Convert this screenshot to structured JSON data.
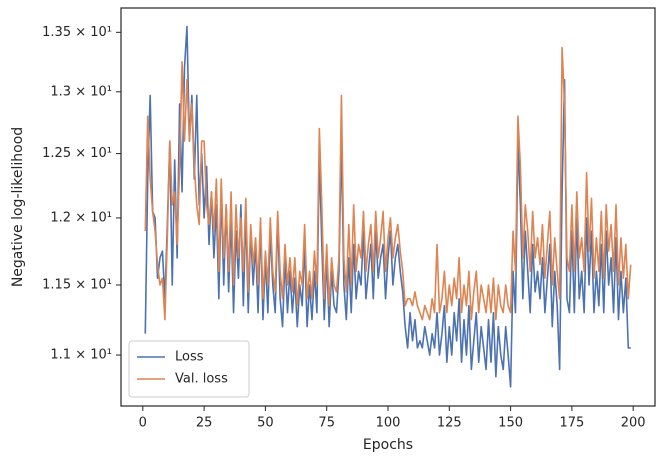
{
  "chart_data": {
    "type": "line",
    "xlabel": "Epochs",
    "ylabel": "Negative log-likelihood",
    "x": [
      1,
      2,
      3,
      4,
      5,
      6,
      7,
      8,
      9,
      10,
      11,
      12,
      13,
      14,
      15,
      16,
      17,
      18,
      19,
      20,
      21,
      22,
      23,
      24,
      25,
      26,
      27,
      28,
      29,
      30,
      31,
      32,
      33,
      34,
      35,
      36,
      37,
      38,
      39,
      40,
      41,
      42,
      43,
      44,
      45,
      46,
      47,
      48,
      49,
      50,
      51,
      52,
      53,
      54,
      55,
      56,
      57,
      58,
      59,
      60,
      61,
      62,
      63,
      64,
      65,
      66,
      67,
      68,
      69,
      70,
      71,
      72,
      73,
      74,
      75,
      76,
      77,
      78,
      79,
      80,
      81,
      82,
      83,
      84,
      85,
      86,
      87,
      88,
      89,
      90,
      91,
      92,
      93,
      94,
      95,
      96,
      97,
      98,
      99,
      100,
      101,
      102,
      103,
      104,
      105,
      106,
      107,
      108,
      109,
      110,
      111,
      112,
      113,
      114,
      115,
      116,
      117,
      118,
      119,
      120,
      121,
      122,
      123,
      124,
      125,
      126,
      127,
      128,
      129,
      130,
      131,
      132,
      133,
      134,
      135,
      136,
      137,
      138,
      139,
      140,
      141,
      142,
      143,
      144,
      145,
      146,
      147,
      148,
      149,
      150,
      151,
      152,
      153,
      154,
      155,
      156,
      157,
      158,
      159,
      160,
      161,
      162,
      163,
      164,
      165,
      166,
      167,
      168,
      169,
      170,
      171,
      172,
      173,
      174,
      175,
      176,
      177,
      178,
      179,
      180,
      181,
      182,
      183,
      184,
      185,
      186,
      187,
      188,
      189,
      190,
      191,
      192,
      193,
      194,
      195,
      196,
      197,
      198,
      199
    ],
    "series": [
      {
        "name": "Loss",
        "color": "#4c72b0",
        "values": [
          11.15,
          12.3,
          12.97,
          12.05,
          12.0,
          11.55,
          11.7,
          11.75,
          11.4,
          11.95,
          12.6,
          11.5,
          12.45,
          11.7,
          12.9,
          12.2,
          13.2,
          13.55,
          12.6,
          12.97,
          12.3,
          12.97,
          12.1,
          12.5,
          12.0,
          12.4,
          11.8,
          12.2,
          11.7,
          12.1,
          11.4,
          12.2,
          11.5,
          12.1,
          11.45,
          12.0,
          11.3,
          11.9,
          11.55,
          12.1,
          11.35,
          12.05,
          11.3,
          11.9,
          11.5,
          11.8,
          11.3,
          11.95,
          11.25,
          11.7,
          11.3,
          11.9,
          11.5,
          11.3,
          12.0,
          11.4,
          11.2,
          11.7,
          11.3,
          11.6,
          11.3,
          11.55,
          11.2,
          11.5,
          11.35,
          11.8,
          11.2,
          11.5,
          11.25,
          11.6,
          11.3,
          12.5,
          11.8,
          11.25,
          11.7,
          11.2,
          11.6,
          11.35,
          11.3,
          11.6,
          12.6,
          11.5,
          11.25,
          11.7,
          11.3,
          11.8,
          11.4,
          11.6,
          11.5,
          11.9,
          11.4,
          11.6,
          11.8,
          11.4,
          11.9,
          11.55,
          11.7,
          11.8,
          11.4,
          11.7,
          11.9,
          11.5,
          11.7,
          11.8,
          11.6,
          11.45,
          11.2,
          11.05,
          11.3,
          11.1,
          11.25,
          11.05,
          11.1,
          11.05,
          11.2,
          11.1,
          11.0,
          11.15,
          11.05,
          11.3,
          11.0,
          11.15,
          11.35,
          10.95,
          11.2,
          11.0,
          11.3,
          11.1,
          11.4,
          10.95,
          11.25,
          11.0,
          11.35,
          10.9,
          11.1,
          11.3,
          10.95,
          11.2,
          11.05,
          10.9,
          11.25,
          10.95,
          11.3,
          10.85,
          11.2,
          11.0,
          10.9,
          11.2,
          11.0,
          10.78,
          11.6,
          11.3,
          12.6,
          12.1,
          11.4,
          11.9,
          11.6,
          11.3,
          11.8,
          11.45,
          11.6,
          11.4,
          11.7,
          11.3,
          11.55,
          11.8,
          11.2,
          11.6,
          11.35,
          10.9,
          12.2,
          13.1,
          11.4,
          11.3,
          11.9,
          11.3,
          12.0,
          11.4,
          11.6,
          11.3,
          12.0,
          11.5,
          11.9,
          11.3,
          11.6,
          11.35,
          11.8,
          11.3,
          11.9,
          11.5,
          11.7,
          11.3,
          11.85,
          11.25,
          11.6,
          11.3,
          11.55,
          11.05,
          11.05
        ]
      },
      {
        "name": "Val. loss",
        "color": "#dd8452",
        "values": [
          11.9,
          12.8,
          12.3,
          12.05,
          11.9,
          11.65,
          11.5,
          11.55,
          11.25,
          11.85,
          12.6,
          12.1,
          12.2,
          11.8,
          12.4,
          13.25,
          12.6,
          13.1,
          12.6,
          12.9,
          12.4,
          12.1,
          11.95,
          12.6,
          12.6,
          12.1,
          11.95,
          12.2,
          11.9,
          12.3,
          11.6,
          12.3,
          11.7,
          12.1,
          11.6,
          12.2,
          11.5,
          12.1,
          11.7,
          12.0,
          11.6,
          12.15,
          11.45,
          11.95,
          11.65,
          11.85,
          11.5,
          12.0,
          11.4,
          11.75,
          11.5,
          12.0,
          11.6,
          11.45,
          12.05,
          11.6,
          11.4,
          11.8,
          11.5,
          11.7,
          11.45,
          11.7,
          11.35,
          11.6,
          11.5,
          11.95,
          11.4,
          11.6,
          11.4,
          11.75,
          11.5,
          12.7,
          12.1,
          11.4,
          11.8,
          11.35,
          11.7,
          11.5,
          11.45,
          11.7,
          12.97,
          11.7,
          11.45,
          11.95,
          11.5,
          12.1,
          11.6,
          11.8,
          11.7,
          12.05,
          11.6,
          11.8,
          11.95,
          11.6,
          12.05,
          11.7,
          11.85,
          12.05,
          11.6,
          11.85,
          12.0,
          11.7,
          11.85,
          11.95,
          11.75,
          11.6,
          11.35,
          11.4,
          11.4,
          11.35,
          11.45,
          11.35,
          11.3,
          11.25,
          11.35,
          11.3,
          11.25,
          11.4,
          11.3,
          11.8,
          11.3,
          11.4,
          11.6,
          11.3,
          11.5,
          11.35,
          11.55,
          11.4,
          11.7,
          11.3,
          11.5,
          11.35,
          11.6,
          11.25,
          11.45,
          11.6,
          11.3,
          11.5,
          11.4,
          11.3,
          11.5,
          11.3,
          11.55,
          11.25,
          11.5,
          11.35,
          11.3,
          11.5,
          11.35,
          11.3,
          11.9,
          11.6,
          12.8,
          12.4,
          11.7,
          12.1,
          11.9,
          11.6,
          12.05,
          11.7,
          11.85,
          11.65,
          11.95,
          11.55,
          11.8,
          12.05,
          11.5,
          11.85,
          11.6,
          11.4,
          13.37,
          12.9,
          11.7,
          11.6,
          12.1,
          11.6,
          12.2,
          11.7,
          11.85,
          11.6,
          12.35,
          11.75,
          12.15,
          11.55,
          11.85,
          11.6,
          12.05,
          11.55,
          12.1,
          11.75,
          11.95,
          11.6,
          12.1,
          11.5,
          11.85,
          11.55,
          11.8,
          11.4,
          11.65
        ]
      }
    ],
    "xlim": [
      -8.9,
      208.9
    ],
    "xticks": [
      0,
      25,
      50,
      75,
      100,
      125,
      150,
      175,
      200
    ],
    "ylim": [
      10.65,
      13.71
    ],
    "log_y": true,
    "yticks": [
      {
        "value": 11,
        "label": "1.1 × 10¹"
      },
      {
        "value": 11.5,
        "label": "1.15 × 10¹"
      },
      {
        "value": 12,
        "label": "1.2 × 10¹"
      },
      {
        "value": 12.5,
        "label": "1.25 × 10¹"
      },
      {
        "value": 13,
        "label": "1.3 × 10¹"
      },
      {
        "value": 13.5,
        "label": "1.35 × 10¹"
      }
    ],
    "grid": false,
    "legend": "lower left"
  }
}
